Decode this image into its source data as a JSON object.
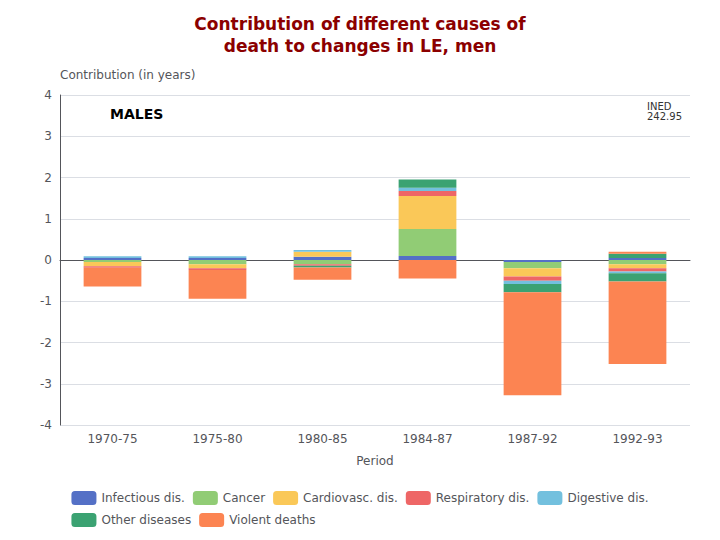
{
  "chart_data": {
    "type": "bar",
    "stacked": true,
    "title": "Contribution of different causes of\ndeath to changes in LE, men",
    "title_color": "#8B0000",
    "y_label": "Contribution (in years)",
    "x_label": "Period",
    "categories": [
      "1970-75",
      "1975-80",
      "1980-85",
      "1984-87",
      "1987-92",
      "1992-93"
    ],
    "ylim": [
      -4,
      4
    ],
    "yticks": [
      -4,
      -3,
      -2,
      -1,
      0,
      1,
      2,
      3,
      4
    ],
    "grid": true,
    "legend": "bottom",
    "annotations": [
      {
        "text": "MALES"
      },
      {
        "text": "INED\n242.95"
      }
    ],
    "series": [
      {
        "name": "Infectious dis.",
        "values": [
          0.05,
          0.05,
          0.08,
          0.1,
          0.0,
          0.05
        ]
      },
      {
        "name": "Infectious dis.",
        "values": [
          0.0,
          0.0,
          0.0,
          0.0,
          -0.05,
          0.0
        ]
      },
      {
        "name": "Cancer",
        "values": [
          0.0,
          0.0,
          0.0,
          0.65,
          0.0,
          0.0
        ]
      },
      {
        "name": "Cancer",
        "values": [
          -0.05,
          -0.1,
          -0.1,
          0.0,
          -0.15,
          -0.1
        ]
      },
      {
        "name": "Cardiovasc. dis.",
        "values": [
          0.0,
          0.0,
          0.12,
          0.8,
          0.0,
          0.0
        ]
      },
      {
        "name": "Cardiovasc. dis.",
        "values": [
          -0.1,
          -0.1,
          0.0,
          0.0,
          -0.2,
          -0.1
        ]
      },
      {
        "name": "Respiratory dis.",
        "values": [
          0.0,
          0.0,
          0.0,
          0.12,
          0.0,
          0.0
        ]
      },
      {
        "name": "Respiratory dis.",
        "values": [
          -0.04,
          -0.04,
          -0.04,
          0.0,
          -0.1,
          -0.08
        ]
      },
      {
        "name": "Digestive dis.",
        "values": [
          0.04,
          0.04,
          0.04,
          0.08,
          0.0,
          0.0
        ]
      },
      {
        "name": "Digestive dis.",
        "values": [
          0.0,
          0.0,
          0.0,
          0.0,
          -0.08,
          -0.04
        ]
      },
      {
        "name": "Other diseases",
        "values": [
          0.0,
          0.0,
          0.0,
          0.2,
          0.0,
          0.1
        ]
      },
      {
        "name": "Other diseases",
        "values": [
          0.0,
          0.0,
          -0.04,
          0.0,
          -0.2,
          -0.2
        ]
      },
      {
        "name": "Violent deaths",
        "values": [
          0.0,
          0.0,
          0.0,
          0.0,
          0.0,
          0.05
        ]
      },
      {
        "name": "Violent deaths",
        "values": [
          -0.45,
          -0.7,
          -0.3,
          -0.45,
          -2.5,
          -2.0
        ]
      }
    ]
  }
}
